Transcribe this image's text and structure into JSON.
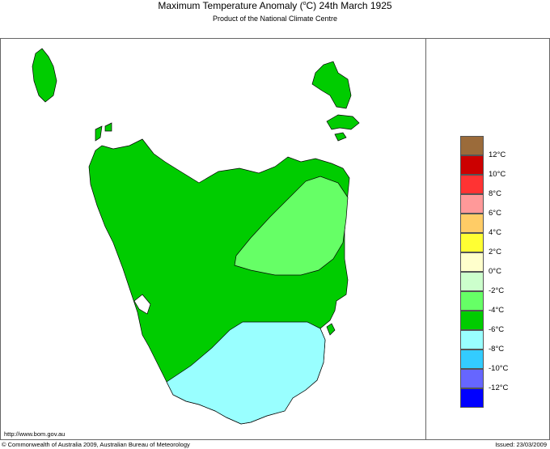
{
  "header": {
    "title_prefix": "Maximum Temperature Anomaly (",
    "title_unit": "o",
    "title_suffix": "C)  24th March 1925",
    "subtitle": "Product of the National Climate Centre"
  },
  "footer": {
    "url": "http://www.bom.gov.au",
    "copyright": "© Commonwealth of Australia 2009, Australian Bureau of Meteorology",
    "issued": "Issued: 23/03/2009"
  },
  "legend": {
    "colors": [
      "#9b6b3a",
      "#cc0000",
      "#ff3333",
      "#ff9999",
      "#ffcc66",
      "#ffff33",
      "#ffffcc",
      "#ccffcc",
      "#66ff66",
      "#00cc00",
      "#99ffff",
      "#33ccff",
      "#6666ff",
      "#0000ff"
    ],
    "labels": [
      "12°C",
      "10°C",
      "8°C",
      "6°C",
      "4°C",
      "2°C",
      "0°C",
      "-2°C",
      "-4°C",
      "-6°C",
      "-8°C",
      "-10°C",
      "-12°C"
    ]
  },
  "regions": {
    "main": "#00cc00",
    "light": "#66ff66",
    "south": "#99ffff"
  }
}
